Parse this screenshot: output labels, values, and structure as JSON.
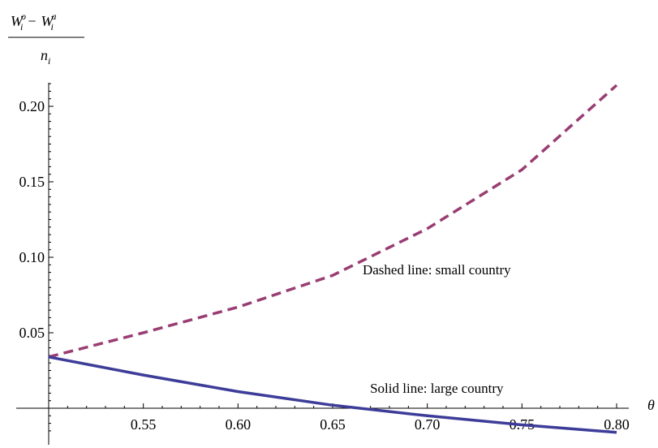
{
  "chart_data": {
    "type": "line",
    "title": "",
    "xlabel": "θ",
    "ylabel": {
      "numerator_main": "W",
      "numerator_o_sub": "i",
      "numerator_o_sup": "o",
      "minus": "−",
      "numerator_a_sub": "i",
      "numerator_a_sup": "a",
      "denominator_main": "n",
      "denominator_sub": "i"
    },
    "xlim": [
      0.5,
      0.8
    ],
    "ylim": [
      -0.015,
      0.22
    ],
    "x_ticks": [
      "0.55",
      "0.60",
      "0.65",
      "0.70",
      "0.75",
      "0.80"
    ],
    "y_ticks": [
      "0.05",
      "0.10",
      "0.15",
      "0.20"
    ],
    "grid": false,
    "colors": {
      "dashed": "#993d73",
      "solid": "#3d3d99"
    },
    "series": [
      {
        "style": "dashed",
        "x": [
          0.5,
          0.55,
          0.6,
          0.65,
          0.7,
          0.75,
          0.8
        ],
        "y": [
          0.034,
          0.05,
          0.067,
          0.088,
          0.119,
          0.158,
          0.214
        ]
      },
      {
        "style": "solid",
        "x": [
          0.5,
          0.55,
          0.6,
          0.65,
          0.7,
          0.75,
          0.8
        ],
        "y": [
          0.034,
          0.022,
          0.011,
          0.002,
          -0.005,
          -0.011,
          -0.016
        ]
      }
    ],
    "annotations": [
      {
        "text": "Dashed line: small country",
        "x": 0.705,
        "y": 0.092
      },
      {
        "text": "Solid line: large country",
        "x": 0.705,
        "y": 0.0135
      }
    ]
  }
}
